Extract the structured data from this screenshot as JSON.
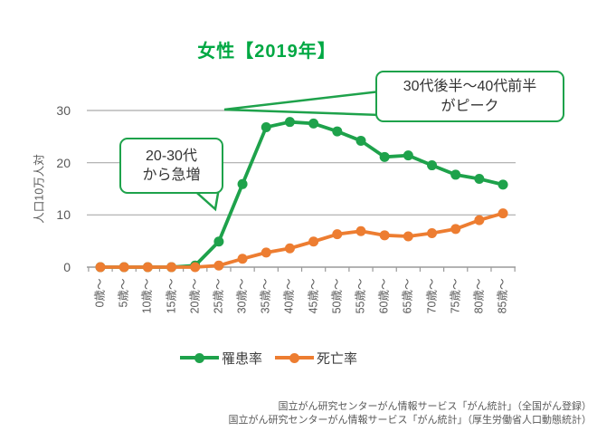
{
  "chart_data": {
    "type": "line",
    "title": "女性【2019年】",
    "ylabel": "人口10万人対",
    "ylim": [
      0,
      30
    ],
    "yticks": [
      0,
      10,
      20,
      30
    ],
    "grid": true,
    "legend_position": "bottom",
    "categories": [
      "0歳～",
      "5歳～",
      "10歳～",
      "15歳～",
      "20歳～",
      "25歳～",
      "30歳～",
      "35歳～",
      "40歳～",
      "45歳～",
      "50歳～",
      "55歳～",
      "60歳～",
      "65歳～",
      "70歳～",
      "75歳～",
      "80歳～",
      "85歳～"
    ],
    "series": [
      {
        "name": "罹患率",
        "color": "#1ea24b",
        "values": [
          0,
          0,
          0,
          0,
          0.3,
          4.9,
          15.9,
          26.8,
          27.8,
          27.5,
          26.0,
          24.2,
          21.1,
          21.4,
          19.5,
          17.7,
          16.9,
          15.8
        ]
      },
      {
        "name": "死亡率",
        "color": "#ed7d31",
        "values": [
          0,
          0,
          0,
          0,
          0,
          0.3,
          1.6,
          2.8,
          3.6,
          4.9,
          6.3,
          6.9,
          6.1,
          5.9,
          6.5,
          7.3,
          9.0,
          10.3
        ]
      }
    ],
    "annotations": [
      {
        "line1": "30代後半～40代前半",
        "line2": "がピーク"
      },
      {
        "line1": "20-30代",
        "line2": "から急増"
      }
    ]
  },
  "sources": {
    "line1": "国立がん研究センターがん情報サービス「がん統計」（全国がん登録）",
    "line2": "国立がん研究センターがん情報サービス「がん統計」（厚生労働省人口動態統計）"
  },
  "colors": {
    "title_green": "#00a843",
    "line_green": "#1ea24b",
    "line_orange": "#ed7d31",
    "grid_gray": "#ababab",
    "axis_gray": "#9a9a9a",
    "tick_text_gray": "#595959"
  }
}
